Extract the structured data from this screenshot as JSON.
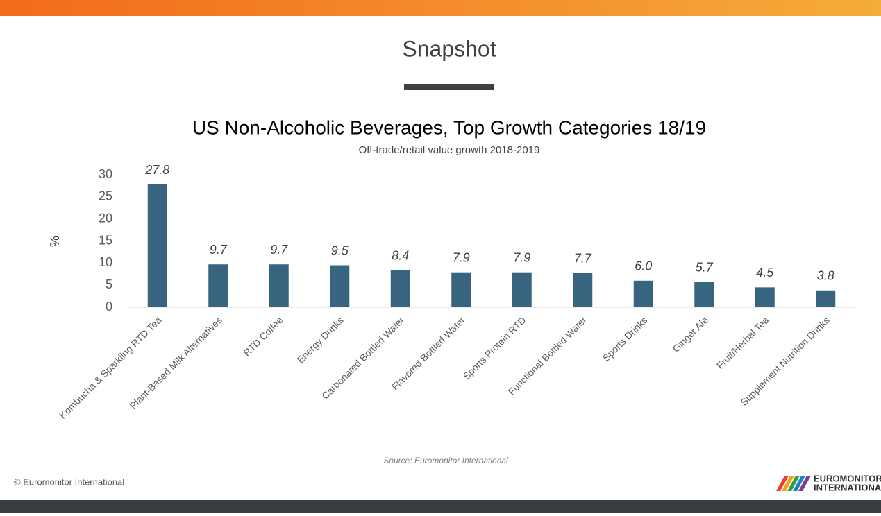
{
  "slide": {
    "title": "Snapshot",
    "copyright": "© Euromonitor International",
    "logo_lines": [
      "EUROMONITOR",
      "INTERNATIONAL"
    ]
  },
  "chart_data": {
    "type": "bar",
    "title": "US Non-Alcoholic Beverages, Top Growth Categories 18/19",
    "subtitle": "Off-trade/retail value growth 2018-2019",
    "y_label": "%",
    "source": "Source: Euromonitor International",
    "categories": [
      "Kombucha & Sparkling RTD Tea",
      "Plant-Based Milk Alternatives",
      "RTD Coffee",
      "Energy Drinks",
      "Carbonated Bottled Water",
      "Flavored Bottled Water",
      "Sports Protein RTD",
      "Functional Bottled Water",
      "Sports Drinks",
      "Ginger Ale",
      "Fruit/Herbal Tea",
      "Supplement Nutrition Drinks"
    ],
    "values": [
      27.8,
      9.7,
      9.7,
      9.5,
      8.4,
      7.9,
      7.9,
      7.7,
      6.0,
      5.7,
      4.5,
      3.8
    ],
    "value_labels": [
      "27.8",
      "9.7",
      "9.7",
      "9.5",
      "8.4",
      "7.9",
      "7.9",
      "7.7",
      "6.0",
      "5.7",
      "4.5",
      "3.8"
    ],
    "color": "#386480",
    "ylim": [
      0,
      30
    ],
    "yticks": [
      0,
      5,
      10,
      15,
      20,
      25,
      30
    ],
    "grid": false
  }
}
